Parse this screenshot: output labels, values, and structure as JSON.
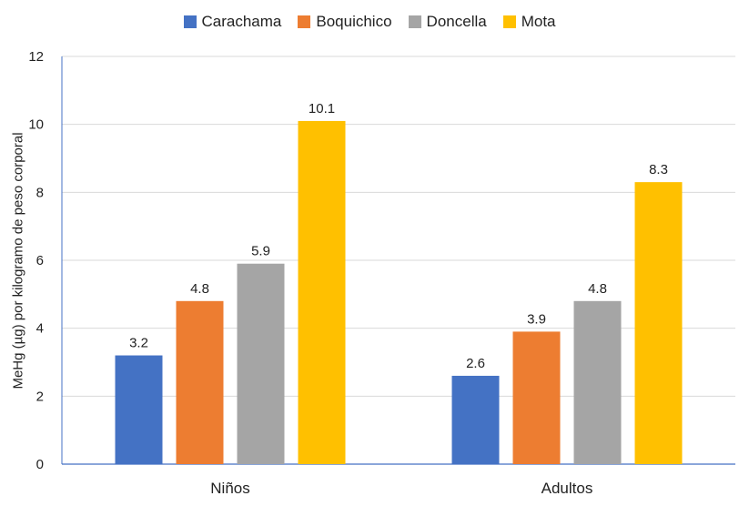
{
  "chart_data": {
    "type": "bar",
    "categories": [
      "Niños",
      "Adultos"
    ],
    "series": [
      {
        "name": "Carachama",
        "color": "#4472C4",
        "values": [
          3.2,
          2.6
        ]
      },
      {
        "name": "Boquichico",
        "color": "#ED7D31",
        "values": [
          4.8,
          3.9
        ]
      },
      {
        "name": "Doncella",
        "color": "#A5A5A5",
        "values": [
          5.9,
          4.8
        ]
      },
      {
        "name": "Mota",
        "color": "#FFC000",
        "values": [
          10.1,
          8.3
        ]
      }
    ],
    "data_labels": [
      [
        "3.2",
        "4.8",
        "5.9",
        "10.1"
      ],
      [
        "2.6",
        "3.9",
        "4.8",
        "8.3"
      ]
    ],
    "yticks": [
      "0",
      "2",
      "4",
      "6",
      "8",
      "10",
      "12"
    ],
    "ylim": [
      0,
      12
    ],
    "ylabel": "MeHg (µg) por kilogramo de peso corporal",
    "xlabel": "",
    "grid": true,
    "legend_position": "top"
  }
}
